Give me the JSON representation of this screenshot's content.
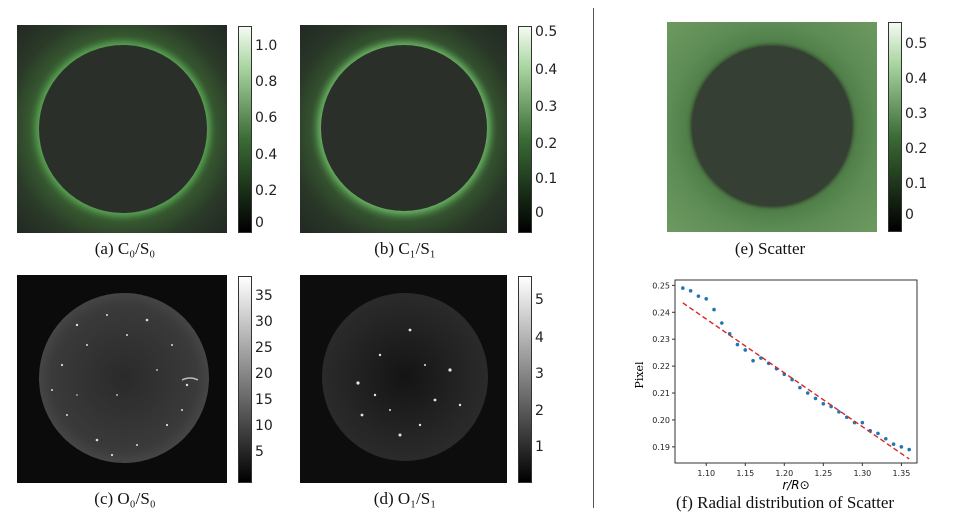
{
  "panels": {
    "a": {
      "caption": "(a) C₀/S₀",
      "ticks": [
        "1.0",
        "0.8",
        "0.6",
        "0.4",
        "0.2",
        "0"
      ]
    },
    "b": {
      "caption": "(b) C₁/S₁",
      "ticks": [
        "0.5",
        "0.4",
        "0.3",
        "0.2",
        "0.1",
        "0"
      ]
    },
    "c": {
      "caption": "(c) O₀/S₀",
      "ticks": [
        "35",
        "30",
        "25",
        "20",
        "15",
        "10",
        "5"
      ]
    },
    "d": {
      "caption": "(d) O₁/S₁",
      "ticks": [
        "5",
        "4",
        "3",
        "2",
        "1"
      ]
    },
    "e": {
      "caption": "(e) Scatter",
      "ticks": [
        "0.5",
        "0.4",
        "0.3",
        "0.2",
        "0.1",
        "0"
      ]
    },
    "f": {
      "caption": "(f) Radial distribution of Scatter"
    }
  },
  "chart_data": {
    "type": "scatter",
    "xlabel": "r/R⊙",
    "ylabel": "Pixel",
    "xlim": [
      1.06,
      1.37
    ],
    "ylim": [
      0.184,
      0.252
    ],
    "xticks": [
      "1.10",
      "1.15",
      "1.20",
      "1.25",
      "1.30",
      "1.35"
    ],
    "yticks": [
      "0.25",
      "0.24",
      "0.23",
      "0.22",
      "0.21",
      "0.20",
      "0.19"
    ],
    "series": [
      {
        "style": "points",
        "color": "#1f77b4",
        "x": [
          1.07,
          1.08,
          1.09,
          1.1,
          1.11,
          1.12,
          1.13,
          1.14,
          1.15,
          1.16,
          1.17,
          1.18,
          1.19,
          1.2,
          1.21,
          1.22,
          1.23,
          1.24,
          1.25,
          1.26,
          1.27,
          1.28,
          1.29,
          1.3,
          1.31,
          1.32,
          1.33,
          1.34,
          1.35,
          1.36
        ],
        "y": [
          0.249,
          0.248,
          0.246,
          0.245,
          0.241,
          0.236,
          0.232,
          0.228,
          0.226,
          0.222,
          0.223,
          0.221,
          0.219,
          0.217,
          0.215,
          0.212,
          0.21,
          0.208,
          0.206,
          0.205,
          0.203,
          0.201,
          0.199,
          0.199,
          0.196,
          0.195,
          0.193,
          0.191,
          0.19,
          0.189
        ]
      },
      {
        "style": "dashed-line",
        "color": "#d62728",
        "x": [
          1.07,
          1.36
        ],
        "y": [
          0.2435,
          0.1855
        ]
      }
    ]
  }
}
